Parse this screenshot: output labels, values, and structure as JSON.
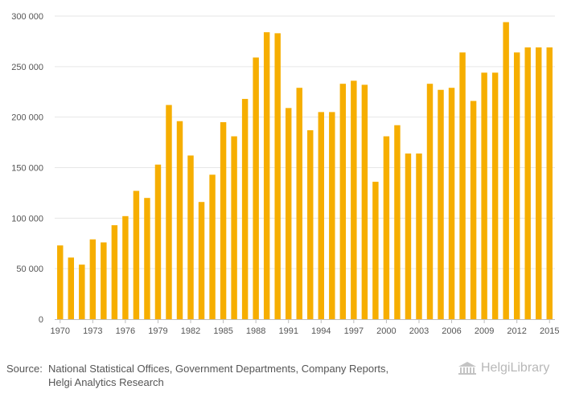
{
  "chart_data": {
    "type": "bar",
    "title": "",
    "xlabel": "",
    "ylabel": "",
    "ylim": [
      0,
      300000
    ],
    "yticks": [
      0,
      50000,
      100000,
      150000,
      200000,
      250000,
      300000
    ],
    "ytick_labels": [
      "0",
      "50 000",
      "100 000",
      "150 000",
      "200 000",
      "250 000",
      "300 000"
    ],
    "xtick_labels": [
      "1970",
      "1973",
      "1976",
      "1979",
      "1982",
      "1985",
      "1988",
      "1991",
      "1994",
      "1997",
      "2000",
      "2003",
      "2006",
      "2009",
      "2012",
      "2015"
    ],
    "bar_color": "#F6AE00",
    "categories": [
      1970,
      1971,
      1972,
      1973,
      1974,
      1975,
      1976,
      1977,
      1978,
      1979,
      1980,
      1981,
      1982,
      1983,
      1984,
      1985,
      1986,
      1987,
      1988,
      1989,
      1990,
      1991,
      1992,
      1993,
      1994,
      1995,
      1996,
      1997,
      1998,
      1999,
      2000,
      2001,
      2002,
      2003,
      2004,
      2005,
      2006,
      2007,
      2008,
      2009,
      2010,
      2011,
      2012,
      2013,
      2014,
      2015
    ],
    "values": [
      73000,
      61000,
      54000,
      79000,
      76000,
      93000,
      102000,
      127000,
      120000,
      153000,
      212000,
      196000,
      162000,
      116000,
      143000,
      195000,
      181000,
      218000,
      259000,
      284000,
      283000,
      209000,
      229000,
      187000,
      205000,
      205000,
      233000,
      236000,
      232000,
      136000,
      181000,
      192000,
      164000,
      164000,
      233000,
      227000,
      229000,
      264000,
      216000,
      244000,
      244000,
      294000,
      264000,
      269000,
      269000,
      269000
    ]
  },
  "footer": {
    "source_label": "Source:",
    "source_line1": "National Statistical Offices, Government Departments, Company Reports,",
    "source_line2": "Helgi Analytics Research"
  },
  "logo": {
    "text": "HelgiLibrary",
    "icon": "library-building-icon"
  }
}
